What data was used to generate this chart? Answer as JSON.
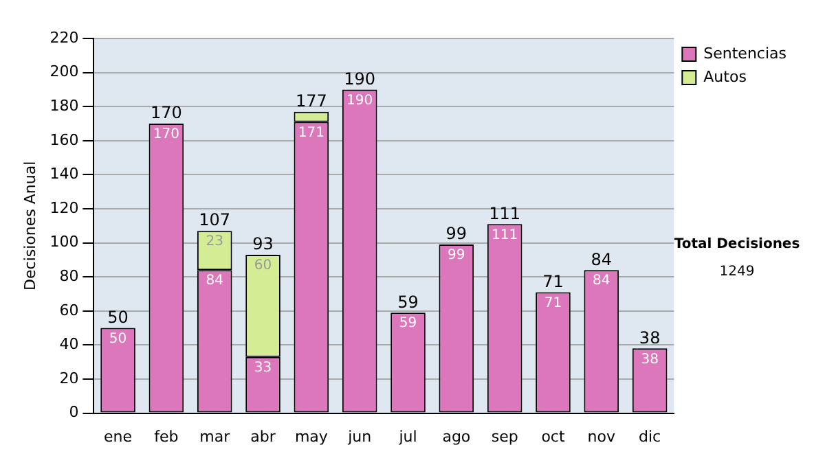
{
  "chart_data": {
    "type": "bar",
    "stacked": true,
    "ylabel": "Decisiones Anual",
    "categories": [
      "ene",
      "feb",
      "mar",
      "abr",
      "may",
      "jun",
      "jul",
      "ago",
      "sep",
      "oct",
      "nov",
      "dic"
    ],
    "series": [
      {
        "name": "Sentencias",
        "color": "#dd77bb",
        "values": [
          50,
          170,
          84,
          33,
          171,
          190,
          59,
          99,
          111,
          71,
          84,
          38
        ],
        "value_labels": [
          "50",
          "170",
          "84",
          "33",
          "171",
          "190",
          "59",
          "99",
          "111",
          "71",
          "84",
          "38"
        ]
      },
      {
        "name": "Autos",
        "color": "#d4ec94",
        "values": [
          null,
          null,
          23,
          60,
          6,
          null,
          null,
          null,
          null,
          null,
          null,
          null
        ],
        "value_labels": [
          null,
          null,
          "23",
          "60",
          null,
          null,
          null,
          null,
          null,
          null,
          null,
          null
        ]
      }
    ],
    "totals": [
      "50",
      "170",
      "107",
      "93",
      "177",
      "190",
      "59",
      "99",
      "111",
      "71",
      "84",
      "38"
    ],
    "ylim": [
      0,
      220
    ],
    "yticks": [
      0,
      20,
      40,
      60,
      80,
      100,
      120,
      140,
      160,
      180,
      200,
      220
    ],
    "grid": "y",
    "legend": "right",
    "annotations": [
      "Total Decisiones",
      "1249"
    ]
  }
}
